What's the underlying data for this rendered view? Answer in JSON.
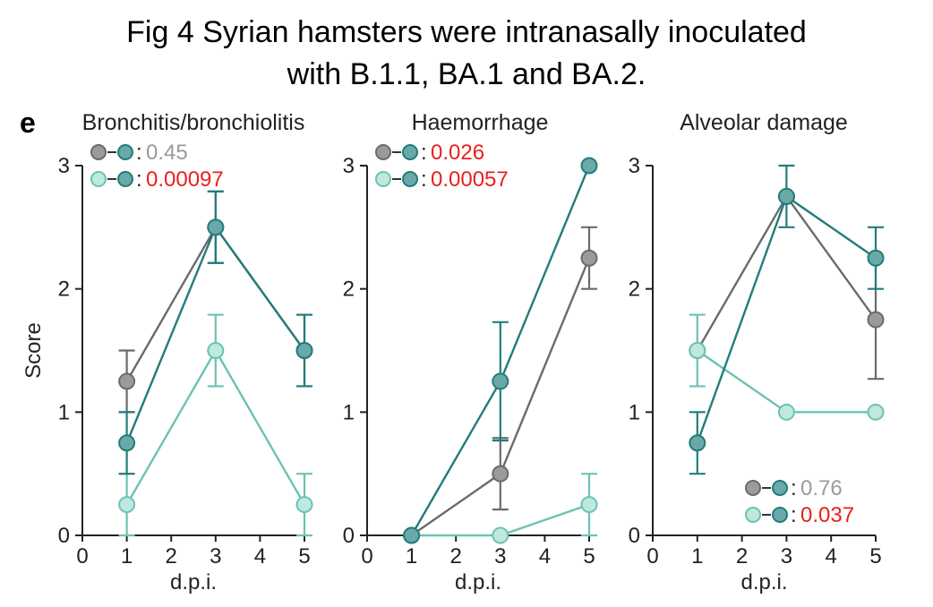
{
  "figure": {
    "title_line_1": "Fig 4 Syrian hamsters were intranasally inoculated",
    "title_line_2": "with B.1.1, BA.1 and BA.2.",
    "panel_letter": "e"
  },
  "colors": {
    "B.1.1": "#6b6b6b",
    "B.1.1_fill": "#9b9b9b",
    "BA.1": "#6cc2b4",
    "BA.1_fill": "#bfe8df",
    "BA.2": "#237c7c",
    "BA.2_fill": "#6aa9a9",
    "p_nonsig": "#9a9a9a",
    "p_sig": "#e8201e"
  },
  "chart_data": [
    {
      "type": "line",
      "title": "Bronchitis/bronchiolitis",
      "xlabel": "d.p.i.",
      "ylabel": "Score",
      "xlim": [
        0,
        5
      ],
      "ylim": [
        0,
        3
      ],
      "xticks": [
        0,
        1,
        2,
        3,
        4,
        5
      ],
      "yticks": [
        0,
        1,
        2,
        3
      ],
      "series": [
        {
          "key": "B.1.1",
          "x": [
            1,
            3,
            5
          ],
          "y": [
            1.25,
            2.5,
            1.5
          ],
          "err": [
            0.25,
            0.29,
            0.29
          ]
        },
        {
          "key": "BA.1",
          "x": [
            1,
            3,
            5
          ],
          "y": [
            0.25,
            1.5,
            0.25
          ],
          "err": [
            0.25,
            0.29,
            0.25
          ]
        },
        {
          "key": "BA.2",
          "x": [
            1,
            3,
            5
          ],
          "y": [
            0.75,
            2.5,
            1.5
          ],
          "err": [
            0.25,
            0.29,
            0.29
          ]
        }
      ],
      "legend_position": "top-left",
      "comparisons": [
        {
          "pair": [
            "B.1.1",
            "BA.2"
          ],
          "p": "0.45",
          "significant": false
        },
        {
          "pair": [
            "BA.1",
            "BA.2"
          ],
          "p": "0.00097",
          "significant": true
        }
      ]
    },
    {
      "type": "line",
      "title": "Haemorrhage",
      "xlabel": "d.p.i.",
      "ylabel": "",
      "xlim": [
        0,
        5
      ],
      "ylim": [
        0,
        3
      ],
      "xticks": [
        0,
        1,
        2,
        3,
        4,
        5
      ],
      "yticks": [
        0,
        1,
        2,
        3
      ],
      "series": [
        {
          "key": "B.1.1",
          "x": [
            1,
            3,
            5
          ],
          "y": [
            0,
            0.5,
            2.25
          ],
          "err": [
            0,
            0.29,
            0.25
          ]
        },
        {
          "key": "BA.1",
          "x": [
            1,
            3,
            5
          ],
          "y": [
            0,
            0,
            0.25
          ],
          "err": [
            0,
            0,
            0.25
          ]
        },
        {
          "key": "BA.2",
          "x": [
            1,
            3,
            5
          ],
          "y": [
            0,
            1.25,
            3.0
          ],
          "err": [
            0,
            0.48,
            0
          ]
        }
      ],
      "legend_position": "top-left",
      "comparisons": [
        {
          "pair": [
            "B.1.1",
            "BA.2"
          ],
          "p": "0.026",
          "significant": true
        },
        {
          "pair": [
            "BA.1",
            "BA.2"
          ],
          "p": "0.00057",
          "significant": true
        }
      ]
    },
    {
      "type": "line",
      "title": "Alveolar damage",
      "xlabel": "d.p.i.",
      "ylabel": "",
      "xlim": [
        0,
        5
      ],
      "ylim": [
        0,
        3
      ],
      "xticks": [
        0,
        1,
        2,
        3,
        4,
        5
      ],
      "yticks": [
        0,
        1,
        2,
        3
      ],
      "series": [
        {
          "key": "B.1.1",
          "x": [
            1,
            3,
            5
          ],
          "y": [
            1.5,
            2.75,
            1.75
          ],
          "err": [
            0,
            0,
            0.48
          ]
        },
        {
          "key": "BA.1",
          "x": [
            1,
            3,
            5
          ],
          "y": [
            1.5,
            1.0,
            1.0
          ],
          "err": [
            0.29,
            0,
            0
          ]
        },
        {
          "key": "BA.2",
          "x": [
            1,
            3,
            5
          ],
          "y": [
            0.75,
            2.75,
            2.25
          ],
          "err": [
            0.25,
            0.25,
            0.25
          ]
        }
      ],
      "legend_position": "bottom-right",
      "comparisons": [
        {
          "pair": [
            "B.1.1",
            "BA.2"
          ],
          "p": "0.76",
          "significant": false
        },
        {
          "pair": [
            "BA.1",
            "BA.2"
          ],
          "p": "0.037",
          "significant": true
        }
      ]
    }
  ]
}
